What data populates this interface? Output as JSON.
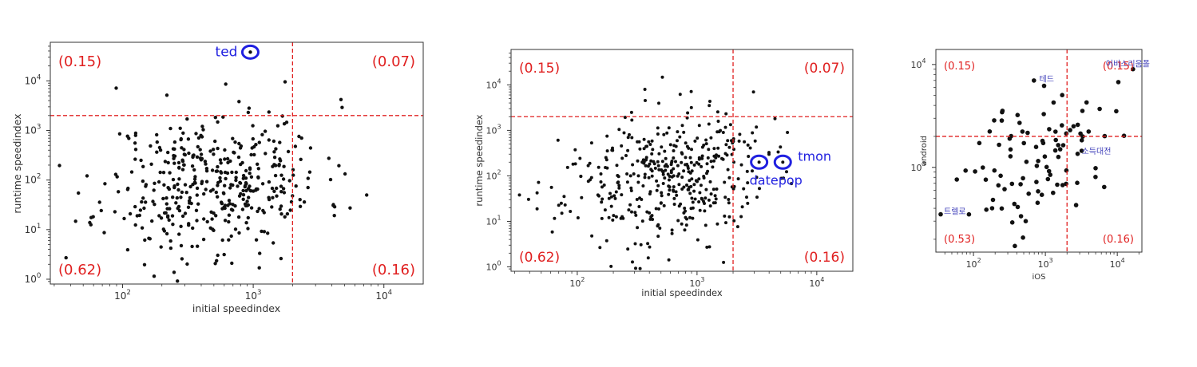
{
  "chart_data": [
    {
      "type": "scatter",
      "xscale": "log",
      "yscale": "log",
      "xlim": [
        28,
        20000
      ],
      "ylim": [
        0.8,
        60000
      ],
      "xlabel": "initial speedindex",
      "ylabel": "runtime speedindex",
      "x_ticks": [
        100,
        1000,
        10000
      ],
      "y_ticks": [
        1,
        10,
        100,
        1000,
        10000
      ],
      "threshold_x": 2000,
      "threshold_y": 2000,
      "quadrant_labels": {
        "top_left": "(0.15)",
        "top_right": "(0.07)",
        "bottom_left": "(0.62)",
        "bottom_right": "(0.16)"
      },
      "highlights": [
        {
          "label": "ted",
          "x": 950,
          "y": 38000
        }
      ],
      "seed": 11,
      "n_points": 430
    },
    {
      "type": "scatter",
      "xscale": "log",
      "yscale": "log",
      "xlim": [
        28,
        20000
      ],
      "ylim": [
        0.8,
        60000
      ],
      "xlabel": "initial speedindex",
      "ylabel": "runtime speedindex",
      "x_ticks": [
        100,
        1000,
        10000
      ],
      "y_ticks": [
        1,
        10,
        100,
        1000,
        10000
      ],
      "threshold_x": 2000,
      "threshold_y": 2000,
      "quadrant_labels": {
        "top_left": "(0.15)",
        "top_right": "(0.07)",
        "bottom_left": "(0.62)",
        "bottom_right": "(0.16)"
      },
      "highlights": [
        {
          "label": "tmon",
          "x": 5200,
          "y": 200
        },
        {
          "label": "datepop",
          "x": 3300,
          "y": 200
        }
      ],
      "seed": 23,
      "n_points": 430
    },
    {
      "type": "scatter",
      "xscale": "log",
      "yscale": "log",
      "xlim": [
        30,
        22000
      ],
      "ylim": [
        150,
        14000
      ],
      "xlabel": "iOS",
      "ylabel": "android",
      "x_ticks": [
        100,
        1000,
        10000
      ],
      "y_ticks": [
        1000,
        10000
      ],
      "threshold_x": 2000,
      "threshold_y": 2000,
      "quadrant_labels": {
        "top_left": "(0.15)",
        "top_right": "(0.15)",
        "bottom_left": "(0.53)",
        "bottom_right": "(0.16)"
      },
      "labeled_points": [
        {
          "label": "어비스리움폴",
          "x": 16500,
          "y": 9000
        },
        {
          "label": "테드",
          "x": 960,
          "y": 6200
        },
        {
          "label": "소득대전",
          "x": 3200,
          "y": 1450
        },
        {
          "label": "트렐로",
          "x": 35,
          "y": 350
        }
      ],
      "seed": 37,
      "n_points": 95
    }
  ]
}
